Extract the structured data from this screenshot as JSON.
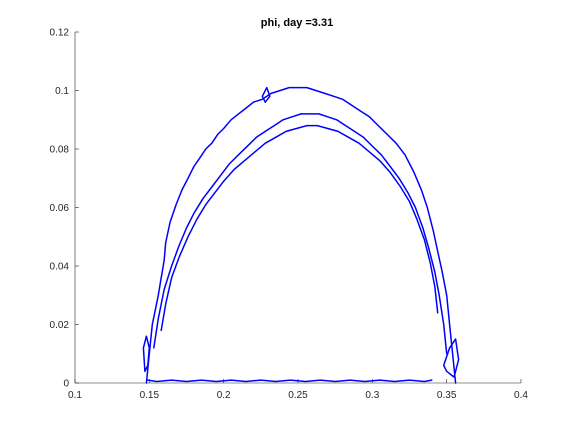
{
  "chart_data": {
    "type": "line",
    "title": "phi, day =3.31",
    "xlabel": "",
    "ylabel": "",
    "xlim": [
      0.1,
      0.4
    ],
    "ylim": [
      0,
      0.12
    ],
    "xticks": [
      0.1,
      0.15,
      0.2,
      0.25,
      0.3,
      0.35,
      0.4
    ],
    "xtick_labels": [
      "0.1",
      "0.15",
      "0.2",
      "0.25",
      "0.3",
      "0.35",
      "0.4"
    ],
    "yticks": [
      0,
      0.02,
      0.04,
      0.06,
      0.08,
      0.1,
      0.12
    ],
    "ytick_labels": [
      "0",
      "0.02",
      "0.04",
      "0.06",
      "0.08",
      "0.1",
      "0.12"
    ],
    "grid": false,
    "line_color": "#0000ff",
    "series": [
      {
        "x": [
          0.148,
          0.15,
          0.152,
          0.156,
          0.158,
          0.16,
          0.161,
          0.164,
          0.168,
          0.172,
          0.176,
          0.18,
          0.184,
          0.188,
          0.192,
          0.196,
          0.2,
          0.205,
          0.21,
          0.215,
          0.22,
          0.226,
          0.232,
          0.238,
          0.244,
          0.25,
          0.256,
          0.262,
          0.268,
          0.274,
          0.28,
          0.286,
          0.292,
          0.298,
          0.304,
          0.31,
          0.316,
          0.322,
          0.328,
          0.333,
          0.337,
          0.341,
          0.344,
          0.347,
          0.35,
          0.352,
          0.354,
          0.356
        ],
        "y": [
          0.0,
          0.01,
          0.02,
          0.03,
          0.036,
          0.042,
          0.048,
          0.055,
          0.061,
          0.066,
          0.07,
          0.074,
          0.077,
          0.08,
          0.082,
          0.085,
          0.087,
          0.09,
          0.092,
          0.094,
          0.096,
          0.097,
          0.099,
          0.1,
          0.101,
          0.101,
          0.101,
          0.1,
          0.099,
          0.098,
          0.097,
          0.095,
          0.093,
          0.091,
          0.088,
          0.085,
          0.082,
          0.078,
          0.072,
          0.066,
          0.06,
          0.052,
          0.045,
          0.038,
          0.03,
          0.02,
          0.01,
          0.0
        ]
      },
      {
        "x": [
          0.153,
          0.156,
          0.16,
          0.165,
          0.17,
          0.175,
          0.18,
          0.186,
          0.192,
          0.198,
          0.204,
          0.21,
          0.216,
          0.222,
          0.228,
          0.234,
          0.24,
          0.246,
          0.252,
          0.258,
          0.264,
          0.27,
          0.276,
          0.282,
          0.288,
          0.294,
          0.3,
          0.306,
          0.312,
          0.318,
          0.324,
          0.329,
          0.334,
          0.338,
          0.342,
          0.345,
          0.348,
          0.35
        ],
        "y": [
          0.012,
          0.022,
          0.032,
          0.04,
          0.047,
          0.053,
          0.058,
          0.063,
          0.067,
          0.071,
          0.075,
          0.078,
          0.081,
          0.084,
          0.086,
          0.088,
          0.09,
          0.091,
          0.092,
          0.092,
          0.092,
          0.091,
          0.09,
          0.088,
          0.086,
          0.084,
          0.081,
          0.078,
          0.074,
          0.07,
          0.065,
          0.06,
          0.053,
          0.046,
          0.038,
          0.03,
          0.02,
          0.01
        ]
      },
      {
        "x": [
          0.158,
          0.161,
          0.165,
          0.17,
          0.176,
          0.182,
          0.188,
          0.194,
          0.2,
          0.207,
          0.214,
          0.221,
          0.228,
          0.235,
          0.242,
          0.249,
          0.256,
          0.263,
          0.27,
          0.277,
          0.284,
          0.291,
          0.298,
          0.305,
          0.312,
          0.319,
          0.325,
          0.33,
          0.335,
          0.339,
          0.342,
          0.344
        ],
        "y": [
          0.018,
          0.027,
          0.036,
          0.043,
          0.05,
          0.056,
          0.061,
          0.065,
          0.069,
          0.073,
          0.076,
          0.079,
          0.082,
          0.084,
          0.086,
          0.087,
          0.088,
          0.088,
          0.087,
          0.086,
          0.084,
          0.082,
          0.079,
          0.076,
          0.072,
          0.067,
          0.062,
          0.056,
          0.049,
          0.041,
          0.033,
          0.024
        ]
      },
      {
        "x": [
          0.149,
          0.155,
          0.165,
          0.175,
          0.185,
          0.195,
          0.205,
          0.215,
          0.225,
          0.235,
          0.245,
          0.255,
          0.265,
          0.275,
          0.285,
          0.295,
          0.305,
          0.315,
          0.325,
          0.335,
          0.34
        ],
        "y": [
          0.001,
          0.0005,
          0.001,
          0.0005,
          0.001,
          0.0005,
          0.001,
          0.0005,
          0.001,
          0.0005,
          0.001,
          0.0005,
          0.001,
          0.0005,
          0.001,
          0.0005,
          0.001,
          0.0005,
          0.001,
          0.0005,
          0.001
        ]
      },
      {
        "x": [
          0.146,
          0.148,
          0.15,
          0.149,
          0.147,
          0.146
        ],
        "y": [
          0.012,
          0.016,
          0.012,
          0.006,
          0.004,
          0.012
        ]
      },
      {
        "x": [
          0.348,
          0.352,
          0.356,
          0.358,
          0.355,
          0.35,
          0.348
        ],
        "y": [
          0.006,
          0.012,
          0.015,
          0.008,
          0.002,
          0.004,
          0.006
        ]
      },
      {
        "x": [
          0.228,
          0.231,
          0.229,
          0.226,
          0.228
        ],
        "y": [
          0.096,
          0.098,
          0.101,
          0.098,
          0.096
        ]
      }
    ]
  }
}
